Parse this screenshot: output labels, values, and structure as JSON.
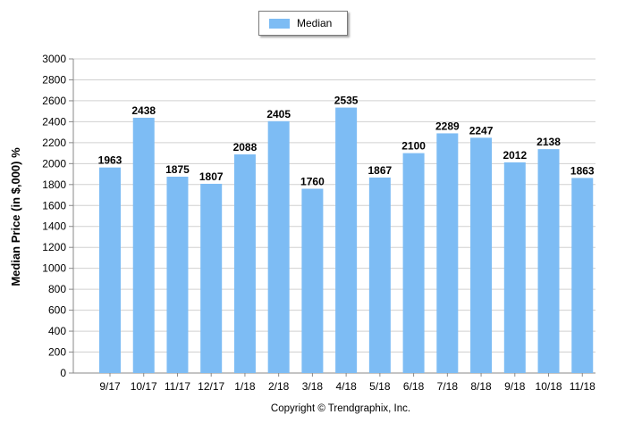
{
  "chart_data": {
    "type": "bar",
    "categories": [
      "9/17",
      "10/17",
      "11/17",
      "12/17",
      "1/18",
      "2/18",
      "3/18",
      "4/18",
      "5/18",
      "6/18",
      "7/18",
      "8/18",
      "9/18",
      "10/18",
      "11/18"
    ],
    "series": [
      {
        "name": "Median",
        "values": [
          1963,
          2438,
          1875,
          1807,
          2088,
          2405,
          1760,
          2535,
          1867,
          2100,
          2289,
          2247,
          2012,
          2138,
          1863
        ]
      }
    ],
    "ylabel": "Median Price (in $,000) %",
    "xlabel": "",
    "ylim": [
      0,
      3000
    ],
    "yticks": [
      "0",
      "200",
      "400",
      "600",
      "800",
      "1000",
      "1200",
      "1400",
      "1600",
      "1800",
      "2000",
      "2200",
      "2400",
      "2600",
      "2800",
      "3000"
    ],
    "grid": true,
    "legend_position": "top-center",
    "data_labels": true,
    "footer": "Copyright © Trendgraphix, Inc.",
    "colors": {
      "bar": "#7dbcf4",
      "grid": "#d0d0d0",
      "axis": "#888888",
      "text": "#000000"
    }
  }
}
